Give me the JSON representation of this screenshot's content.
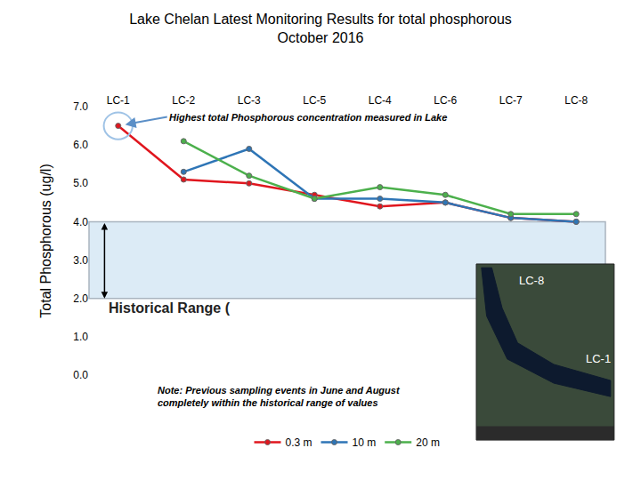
{
  "chart_data": {
    "type": "line",
    "title": "Lake Chelan Latest Monitoring Results for total phosphorous",
    "subtitle": "October 2016",
    "y_label": "Total Phosphorous (ug/l)",
    "categories": [
      "LC-1",
      "LC-2",
      "LC-3",
      "LC-5",
      "LC-4",
      "LC-6",
      "LC-7",
      "LC-8"
    ],
    "series": [
      {
        "name": "0.3 m",
        "color": "#e0161e",
        "values": [
          6.5,
          5.1,
          5.0,
          4.7,
          4.4,
          4.5,
          4.1,
          4.0
        ]
      },
      {
        "name": "10 m",
        "color": "#2e75b6",
        "values": [
          null,
          5.3,
          5.9,
          4.6,
          4.6,
          4.5,
          4.1,
          4.0
        ]
      },
      {
        "name": "20 m",
        "color": "#4cb04c",
        "values": [
          null,
          6.1,
          5.2,
          4.6,
          4.9,
          4.7,
          4.2,
          4.2
        ]
      }
    ],
    "ylim": [
      0,
      7
    ],
    "yticks": [
      {
        "value": 0,
        "label": "0.0"
      },
      {
        "value": 1,
        "label": "1.0"
      },
      {
        "value": 2,
        "label": "2.0"
      },
      {
        "value": 3,
        "label": "3.0"
      },
      {
        "value": 4,
        "label": "4.0"
      },
      {
        "value": 5,
        "label": "5.0"
      },
      {
        "value": 6,
        "label": "6.0"
      },
      {
        "value": 7,
        "label": "7.0"
      }
    ],
    "grid": false,
    "legend": "bottom",
    "marker": "circle",
    "annotations": [
      {
        "text": "Highest total Phosphorous concentration measured in Lake",
        "category": "LC-1",
        "value": 6.5
      }
    ],
    "historical_range": {
      "label": "Historical Range (",
      "values": [
        2,
        4
      ]
    },
    "note": [
      "Note: Previous sampling events in June and August",
      "completely within the historical range of values"
    ],
    "map_labels": [
      "LC-8",
      "LC-1"
    ]
  }
}
